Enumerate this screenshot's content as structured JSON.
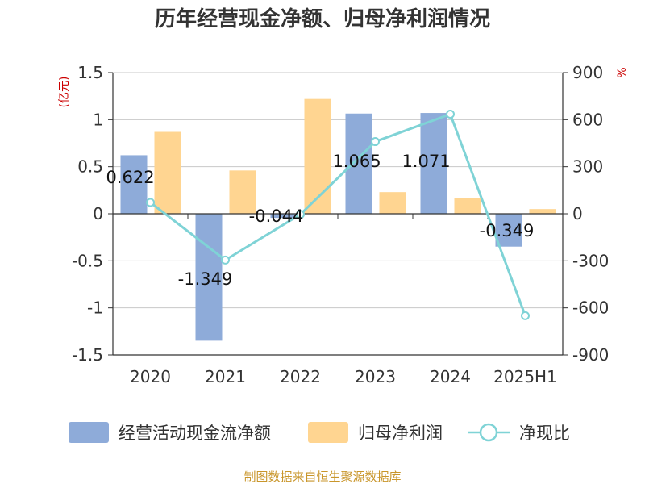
{
  "chart_data": {
    "type": "bar",
    "title": "历年经营现金净额、归母净利润情况",
    "categories": [
      "2020",
      "2021",
      "2022",
      "2023",
      "2024",
      "2025H1"
    ],
    "y_left": {
      "unit": "(亿元)",
      "min": -1.5,
      "max": 1.5,
      "ticks": [
        "1.5",
        "1",
        "0.5",
        "0",
        "-0.5",
        "-1",
        "-1.5"
      ]
    },
    "y_right": {
      "unit": "%",
      "min": -900,
      "max": 900,
      "ticks": [
        "900",
        "600",
        "300",
        "0",
        "-300",
        "-600",
        "-900"
      ]
    },
    "series": [
      {
        "name": "经营活动现金流净额",
        "type": "bar",
        "axis": "left",
        "color": "#8eabd9",
        "values": [
          0.622,
          -1.349,
          -0.044,
          1.065,
          1.071,
          -0.349
        ],
        "labels": [
          "0.622",
          "-1.349",
          "-0.044",
          "1.065",
          "1.071",
          "-0.349"
        ]
      },
      {
        "name": "归母净利润",
        "type": "bar",
        "axis": "left",
        "color": "#ffd591",
        "values": [
          0.87,
          0.46,
          1.22,
          0.23,
          0.17,
          0.05
        ]
      },
      {
        "name": "净现比",
        "type": "line",
        "axis": "right",
        "color": "#7fd3d6",
        "values": [
          72,
          -295,
          -4,
          460,
          635,
          -650
        ]
      }
    ],
    "legend_position": "bottom",
    "grid": true,
    "source": "制图数据来自恒生聚源数据库"
  }
}
